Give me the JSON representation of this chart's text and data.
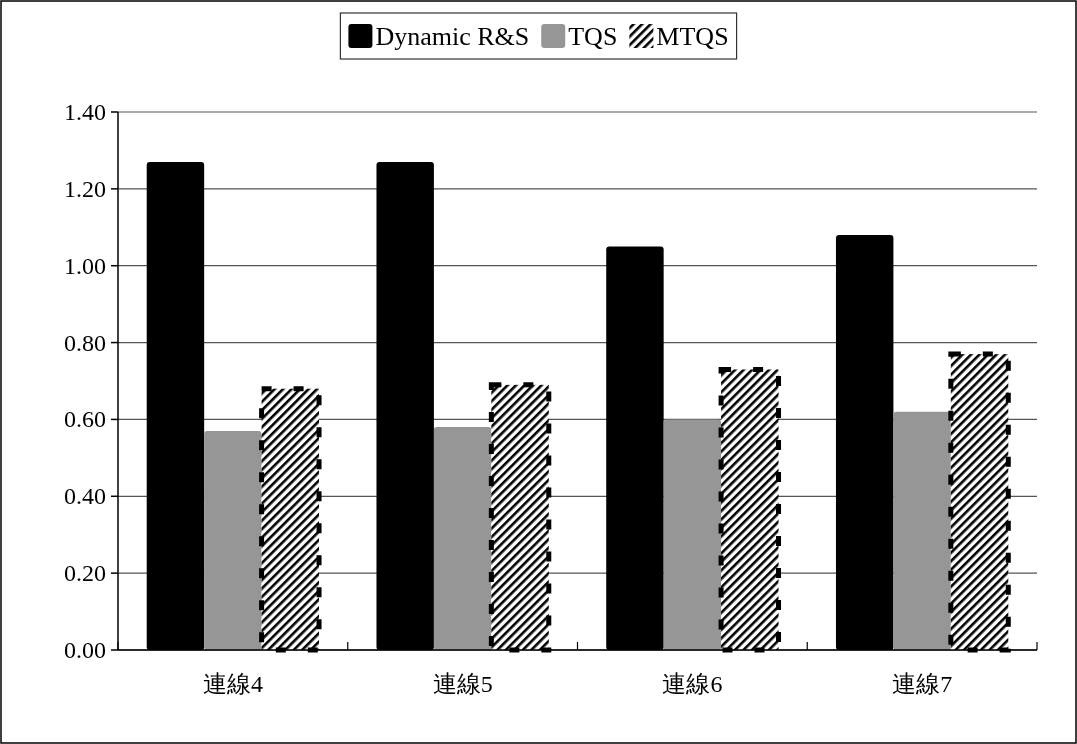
{
  "chart_data": {
    "type": "bar",
    "categories": [
      "連線4",
      "連線5",
      "連線6",
      "連線7"
    ],
    "series": [
      {
        "name": "Dynamic R&S",
        "color": "#000000",
        "values": [
          1.27,
          1.27,
          1.05,
          1.08
        ]
      },
      {
        "name": "TQS",
        "color": "#969696",
        "values": [
          0.57,
          0.58,
          0.6,
          0.62
        ]
      },
      {
        "name": "MTQS",
        "color": "#000000",
        "values": [
          0.68,
          0.69,
          0.73,
          0.77
        ]
      }
    ],
    "ylim": [
      0,
      1.4
    ],
    "yticks": [
      {
        "value": 0,
        "label": "0.00"
      },
      {
        "value": 0.2,
        "label": "0.20"
      },
      {
        "value": 0.4,
        "label": "0.40"
      },
      {
        "value": 0.6,
        "label": "0.60"
      },
      {
        "value": 0.8,
        "label": "0.80"
      },
      {
        "value": 1.0,
        "label": "1.00"
      },
      {
        "value": 1.2,
        "label": "1.20"
      },
      {
        "value": 1.4,
        "label": "1.40"
      }
    ],
    "grid": "y",
    "legend": "top"
  }
}
